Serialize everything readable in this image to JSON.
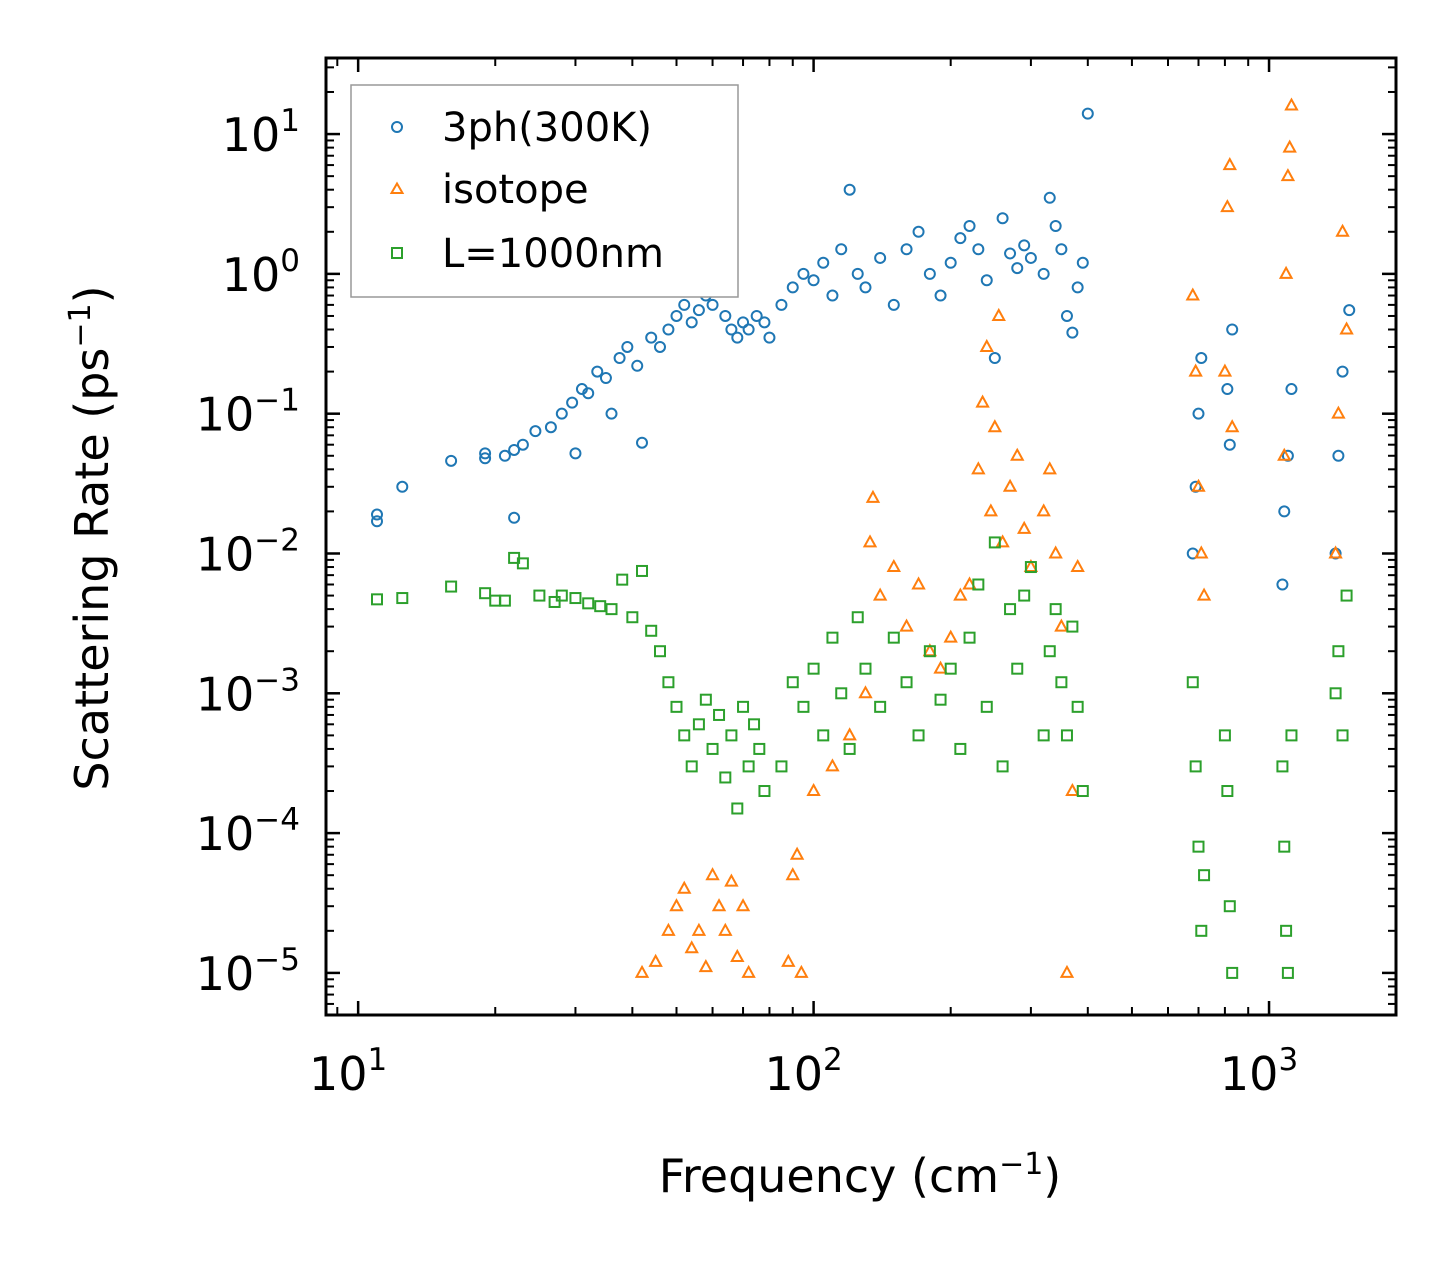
{
  "chart_data": {
    "type": "scatter",
    "title": "",
    "xlabel": "Frequency (cm",
    "xlabel_sup": "−1",
    "xlabel_end": ")",
    "ylabel": "Scattering Rate (ps",
    "ylabel_sup": "−1",
    "ylabel_end": ")",
    "xscale": "log",
    "yscale": "log",
    "xlim": [
      8.5,
      1900
    ],
    "ylim": [
      5e-06,
      35
    ],
    "x_ticks": [
      {
        "value": 10,
        "base": "10",
        "exp": "1"
      },
      {
        "value": 100,
        "base": "10",
        "exp": "2"
      },
      {
        "value": 1000,
        "base": "10",
        "exp": "3"
      }
    ],
    "y_ticks": [
      {
        "value": 1e-05,
        "base": "10",
        "exp": "−5"
      },
      {
        "value": 0.0001,
        "base": "10",
        "exp": "−4"
      },
      {
        "value": 0.001,
        "base": "10",
        "exp": "−3"
      },
      {
        "value": 0.01,
        "base": "10",
        "exp": "−2"
      },
      {
        "value": 0.1,
        "base": "10",
        "exp": "−1"
      },
      {
        "value": 1,
        "base": "10",
        "exp": "0"
      },
      {
        "value": 10,
        "base": "10",
        "exp": "1"
      }
    ],
    "legend_position": "top-left",
    "series": [
      {
        "name": "3ph(300K)",
        "marker": "circle",
        "color": "#1f77b4",
        "x": [
          11.0,
          11.0,
          12.5,
          16.0,
          19.0,
          19.0,
          21.0,
          22.0,
          22.0,
          23.0,
          24.5,
          26.5,
          28.0,
          29.5,
          30.0,
          31.0,
          32.0,
          33.5,
          35.0,
          36.0,
          37.5,
          39.0,
          41.0,
          42.0,
          44.0,
          46.0,
          48.0,
          50.0,
          52.0,
          54.0,
          56.0,
          58.0,
          60.0,
          62.0,
          64.0,
          66.0,
          68.0,
          70.0,
          72.0,
          75.0,
          78.0,
          80.0,
          85.0,
          90.0,
          95.0,
          100.0,
          105.0,
          110.0,
          115.0,
          120.0,
          125.0,
          130.0,
          140.0,
          150.0,
          160.0,
          170.0,
          180.0,
          190.0,
          200.0,
          210.0,
          220.0,
          230.0,
          240.0,
          250.0,
          260.0,
          270.0,
          280.0,
          290.0,
          300.0,
          320.0,
          330.0,
          340.0,
          350.0,
          360.0,
          370.0,
          380.0,
          390.0,
          400.0,
          680.0,
          690.0,
          700.0,
          710.0,
          810.0,
          820.0,
          830.0,
          1070.0,
          1080.0,
          1100.0,
          1120.0,
          1400.0,
          1420.0,
          1450.0,
          1500.0
        ],
        "y": [
          0.017,
          0.019,
          0.03,
          0.046,
          0.048,
          0.052,
          0.05,
          0.055,
          0.018,
          0.06,
          0.075,
          0.08,
          0.1,
          0.12,
          0.052,
          0.15,
          0.14,
          0.2,
          0.18,
          0.1,
          0.25,
          0.3,
          0.22,
          0.062,
          0.35,
          0.3,
          0.4,
          0.5,
          0.6,
          0.45,
          0.55,
          0.7,
          0.6,
          0.8,
          0.5,
          0.4,
          0.35,
          0.45,
          0.4,
          0.5,
          0.45,
          0.35,
          0.6,
          0.8,
          1.0,
          0.9,
          1.2,
          0.7,
          1.5,
          4.0,
          1.0,
          0.8,
          1.3,
          0.6,
          1.5,
          2.0,
          1.0,
          0.7,
          1.2,
          1.8,
          2.2,
          1.5,
          0.9,
          0.25,
          2.5,
          1.4,
          1.1,
          1.6,
          1.3,
          1.0,
          3.5,
          2.2,
          1.5,
          0.5,
          0.38,
          0.8,
          1.2,
          14.0,
          0.01,
          0.03,
          0.1,
          0.25,
          0.15,
          0.06,
          0.4,
          0.006,
          0.02,
          0.05,
          0.15,
          0.01,
          0.05,
          0.2,
          0.55
        ]
      },
      {
        "name": "isotope",
        "marker": "triangle",
        "color": "#ff7f0e",
        "x": [
          42.0,
          45.0,
          48.0,
          50.0,
          52.0,
          54.0,
          56.0,
          58.0,
          60.0,
          62.0,
          64.0,
          66.0,
          68.0,
          70.0,
          72.0,
          88.0,
          90.0,
          92.0,
          94.0,
          100.0,
          110.0,
          120.0,
          130.0,
          133.0,
          135.0,
          140.0,
          150.0,
          160.0,
          170.0,
          180.0,
          190.0,
          200.0,
          210.0,
          220.0,
          230.0,
          235.0,
          240.0,
          245.0,
          250.0,
          255.0,
          260.0,
          270.0,
          280.0,
          290.0,
          300.0,
          320.0,
          330.0,
          340.0,
          350.0,
          360.0,
          370.0,
          380.0,
          680.0,
          690.0,
          700.0,
          710.0,
          720.0,
          800.0,
          810.0,
          820.0,
          830.0,
          1080.0,
          1090.0,
          1100.0,
          1110.0,
          1120.0,
          1400.0,
          1420.0,
          1450.0,
          1480.0
        ],
        "y": [
          1e-05,
          1.2e-05,
          2e-05,
          3e-05,
          4e-05,
          1.5e-05,
          2e-05,
          1.1e-05,
          5e-05,
          3e-05,
          2e-05,
          4.5e-05,
          1.3e-05,
          3e-05,
          1e-05,
          1.2e-05,
          5e-05,
          7e-05,
          1e-05,
          0.0002,
          0.0003,
          0.0005,
          0.001,
          0.012,
          0.025,
          0.005,
          0.008,
          0.003,
          0.006,
          0.002,
          0.0015,
          0.0025,
          0.005,
          0.006,
          0.04,
          0.12,
          0.3,
          0.02,
          0.08,
          0.5,
          0.012,
          0.03,
          0.05,
          0.015,
          0.008,
          0.02,
          0.04,
          0.01,
          0.003,
          1e-05,
          0.0002,
          0.008,
          0.7,
          0.2,
          0.03,
          0.01,
          0.005,
          0.2,
          3.0,
          6.0,
          0.08,
          0.05,
          1.0,
          5.0,
          8.0,
          16.0,
          0.01,
          0.1,
          2.0,
          0.4
        ]
      },
      {
        "name": "L=1000nm",
        "marker": "square",
        "color": "#2ca02c",
        "x": [
          11.0,
          12.5,
          16.0,
          19.0,
          20.0,
          21.0,
          22.0,
          23.0,
          25.0,
          27.0,
          28.0,
          30.0,
          32.0,
          34.0,
          36.0,
          38.0,
          40.0,
          42.0,
          44.0,
          46.0,
          48.0,
          50.0,
          52.0,
          54.0,
          56.0,
          58.0,
          60.0,
          62.0,
          64.0,
          66.0,
          68.0,
          70.0,
          72.0,
          74.0,
          76.0,
          78.0,
          85.0,
          90.0,
          95.0,
          100.0,
          105.0,
          110.0,
          115.0,
          120.0,
          125.0,
          130.0,
          140.0,
          150.0,
          160.0,
          170.0,
          180.0,
          190.0,
          200.0,
          210.0,
          220.0,
          230.0,
          240.0,
          250.0,
          260.0,
          270.0,
          280.0,
          290.0,
          300.0,
          320.0,
          330.0,
          340.0,
          350.0,
          360.0,
          370.0,
          380.0,
          390.0,
          680.0,
          690.0,
          700.0,
          710.0,
          720.0,
          800.0,
          810.0,
          820.0,
          830.0,
          1070.0,
          1080.0,
          1090.0,
          1100.0,
          1120.0,
          1400.0,
          1420.0,
          1450.0,
          1480.0
        ],
        "y": [
          0.0047,
          0.0048,
          0.0058,
          0.0052,
          0.0046,
          0.0046,
          0.0093,
          0.0085,
          0.005,
          0.0045,
          0.005,
          0.0048,
          0.0044,
          0.0042,
          0.004,
          0.0065,
          0.0035,
          0.0075,
          0.0028,
          0.002,
          0.0012,
          0.0008,
          0.0005,
          0.0003,
          0.0006,
          0.0009,
          0.0004,
          0.0007,
          0.00025,
          0.0005,
          0.00015,
          0.0008,
          0.0003,
          0.0006,
          0.0004,
          0.0002,
          0.0003,
          0.0012,
          0.0008,
          0.0015,
          0.0005,
          0.0025,
          0.001,
          0.0004,
          0.0035,
          0.0015,
          0.0008,
          0.0025,
          0.0012,
          0.0005,
          0.002,
          0.0009,
          0.0015,
          0.0004,
          0.0025,
          0.006,
          0.0008,
          0.012,
          0.0003,
          0.004,
          0.0015,
          0.005,
          0.008,
          0.0005,
          0.002,
          0.004,
          0.0012,
          0.0005,
          0.003,
          0.0008,
          0.0002,
          0.0012,
          0.0003,
          8e-05,
          2e-05,
          5e-05,
          0.0005,
          0.0002,
          3e-05,
          1e-05,
          0.0003,
          8e-05,
          2e-05,
          1e-05,
          0.0005,
          0.001,
          0.002,
          0.0005,
          0.005
        ]
      }
    ]
  }
}
